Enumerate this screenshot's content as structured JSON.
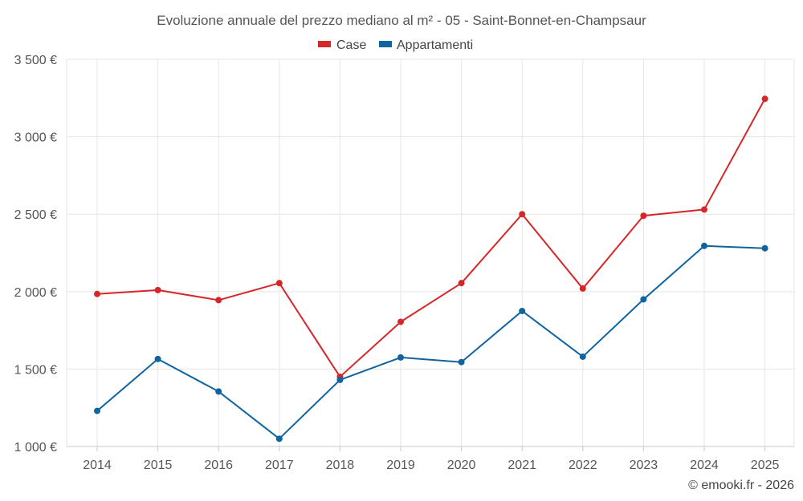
{
  "chart_data": {
    "type": "line",
    "title": "Evoluzione annuale del prezzo mediano al m² - 05 - Saint-Bonnet-en-Champsaur",
    "categories": [
      "2014",
      "2015",
      "2016",
      "2017",
      "2018",
      "2019",
      "2020",
      "2021",
      "2022",
      "2023",
      "2024",
      "2025"
    ],
    "series": [
      {
        "name": "Case",
        "color": "#d62728",
        "values": [
          1985,
          2010,
          1945,
          2055,
          1450,
          1805,
          2055,
          2500,
          2020,
          2490,
          2530,
          3245
        ]
      },
      {
        "name": "Appartamenti",
        "color": "#0f64a0",
        "values": [
          1230,
          1565,
          1355,
          1050,
          1430,
          1575,
          1545,
          1875,
          1580,
          1950,
          2295,
          2280
        ]
      }
    ],
    "y_ticks": [
      {
        "value": 1000,
        "label": "1 000 €"
      },
      {
        "value": 1500,
        "label": "1 500 €"
      },
      {
        "value": 2000,
        "label": "2 000 €"
      },
      {
        "value": 2500,
        "label": "2 500 €"
      },
      {
        "value": 3000,
        "label": "3 000 €"
      },
      {
        "value": 3500,
        "label": "3 500 €"
      }
    ],
    "ylim": [
      1000,
      3500
    ],
    "xlabel": "",
    "ylabel": "",
    "grid": true,
    "legend_position": "top-center"
  },
  "credit": "© emooki.fr - 2026"
}
